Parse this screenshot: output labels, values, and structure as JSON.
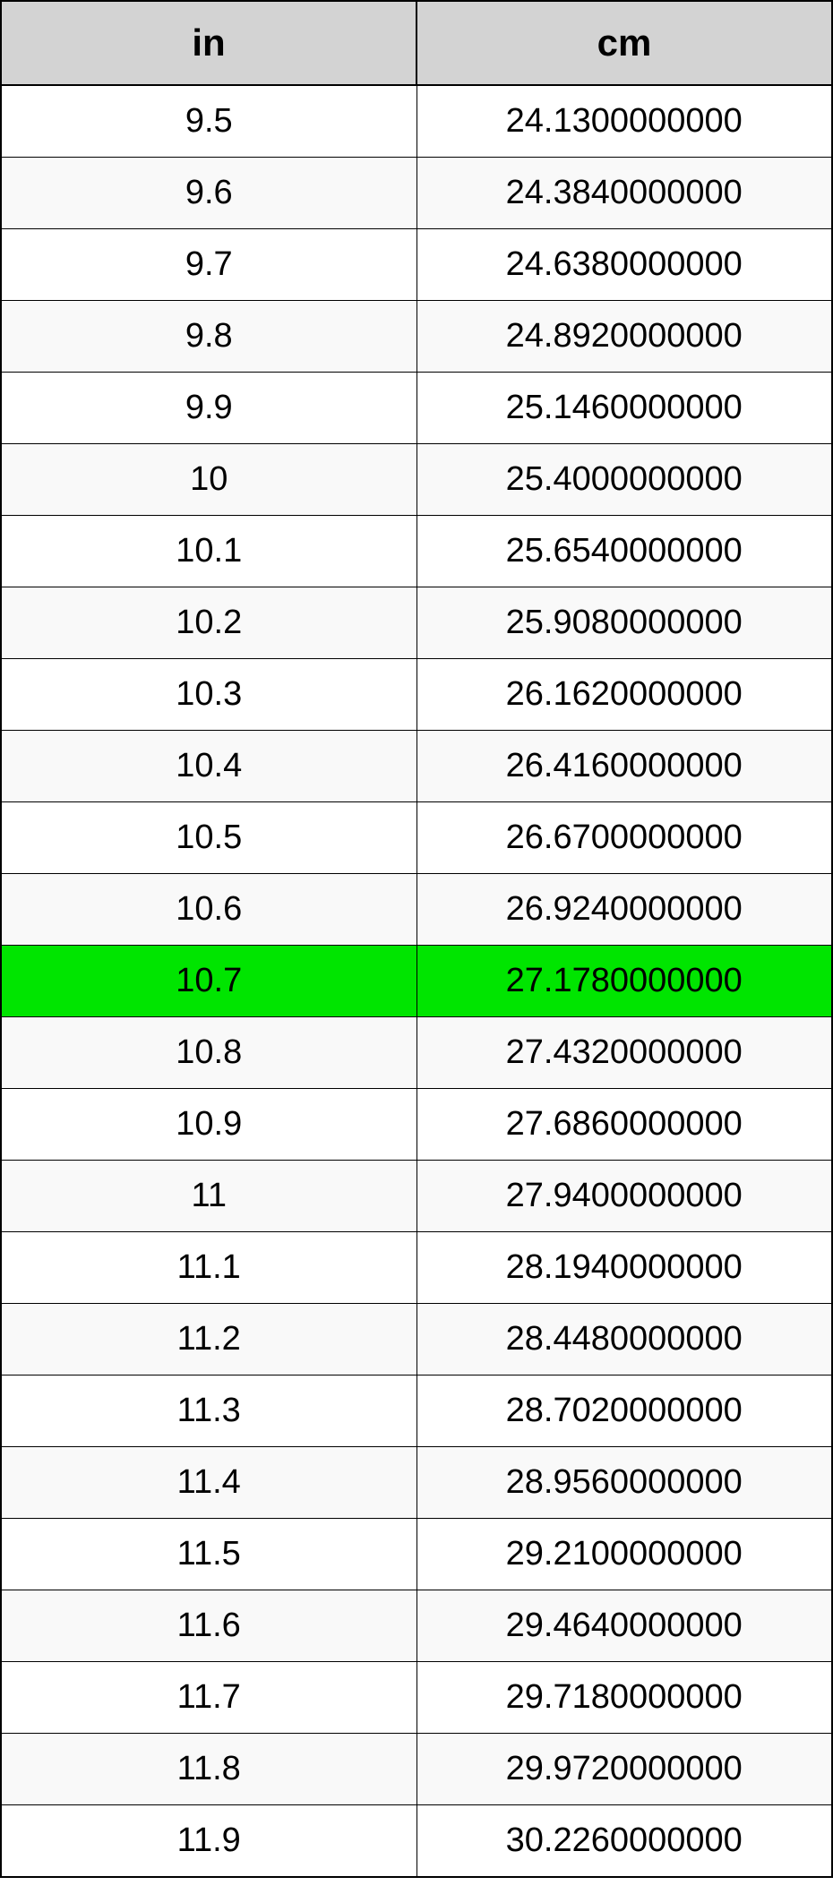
{
  "table": {
    "columns": [
      "in",
      "cm"
    ],
    "header_bg": "#d3d3d3",
    "header_fontsize": 42,
    "cell_fontsize": 38,
    "border_color": "#000000",
    "alt_row_bg": "#f9f9f9",
    "highlight_bg": "#00e500",
    "highlight_index": 12,
    "rows": [
      [
        "9.5",
        "24.1300000000"
      ],
      [
        "9.6",
        "24.3840000000"
      ],
      [
        "9.7",
        "24.6380000000"
      ],
      [
        "9.8",
        "24.8920000000"
      ],
      [
        "9.9",
        "25.1460000000"
      ],
      [
        "10",
        "25.4000000000"
      ],
      [
        "10.1",
        "25.6540000000"
      ],
      [
        "10.2",
        "25.9080000000"
      ],
      [
        "10.3",
        "26.1620000000"
      ],
      [
        "10.4",
        "26.4160000000"
      ],
      [
        "10.5",
        "26.6700000000"
      ],
      [
        "10.6",
        "26.9240000000"
      ],
      [
        "10.7",
        "27.1780000000"
      ],
      [
        "10.8",
        "27.4320000000"
      ],
      [
        "10.9",
        "27.6860000000"
      ],
      [
        "11",
        "27.9400000000"
      ],
      [
        "11.1",
        "28.1940000000"
      ],
      [
        "11.2",
        "28.4480000000"
      ],
      [
        "11.3",
        "28.7020000000"
      ],
      [
        "11.4",
        "28.9560000000"
      ],
      [
        "11.5",
        "29.2100000000"
      ],
      [
        "11.6",
        "29.4640000000"
      ],
      [
        "11.7",
        "29.7180000000"
      ],
      [
        "11.8",
        "29.9720000000"
      ],
      [
        "11.9",
        "30.2260000000"
      ]
    ]
  }
}
